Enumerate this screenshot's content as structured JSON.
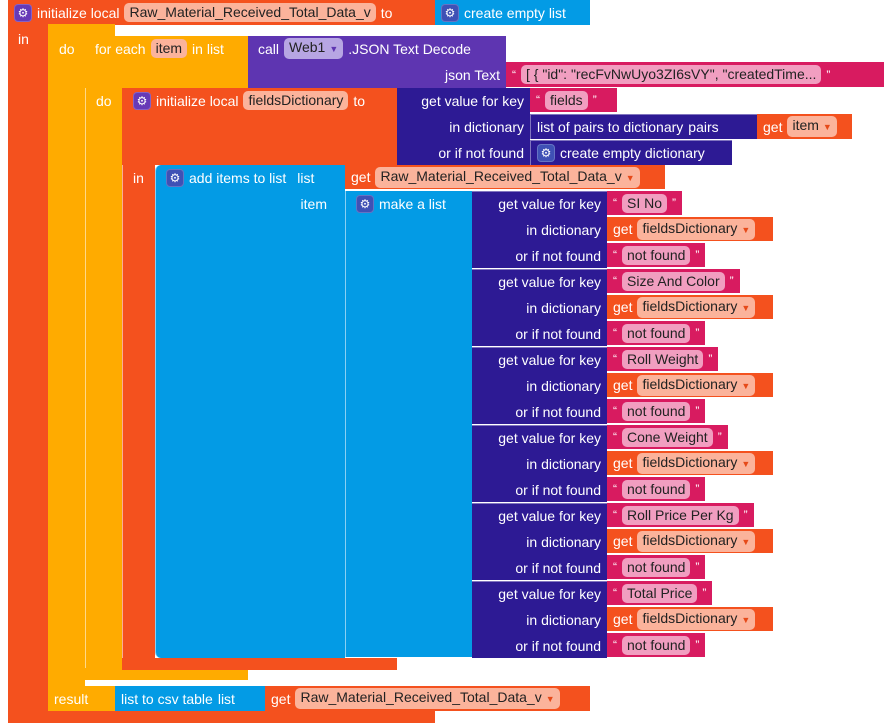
{
  "outer": {
    "label": "initialize local",
    "var": "Raw_Material_Received_Total_Data_v",
    "to": "to",
    "create": "create empty list",
    "in": "in"
  },
  "doblock": {
    "do": "do",
    "result": "result",
    "csv": "list to csv table",
    "list": "list",
    "get": "get",
    "var": "Raw_Material_Received_Total_Data_v"
  },
  "foreach": {
    "label": "for each",
    "var": "item",
    "inlist": "in list",
    "do": "do"
  },
  "call": {
    "call": "call",
    "component": "Web1",
    "method": ".JSON Text Decode",
    "json_label": "json Text",
    "json_value": "[ {  \"id\": \"recFvNwUyo3ZI6sVY\",  \"createdTime..."
  },
  "fd": {
    "label": "initialize local",
    "var": "fieldsDictionary",
    "to": "to",
    "in": "in",
    "gvk": "get value for key",
    "key": "fields",
    "indict": "in dictionary",
    "notfound": "or if not found",
    "lop": "list of pairs to dictionary",
    "pairs": "pairs",
    "get": "get",
    "item": "item",
    "ced": "create empty dictionary"
  },
  "add": {
    "label": "add items to list",
    "list": "list",
    "get": "get",
    "var": "Raw_Material_Received_Total_Data_v",
    "item": "item",
    "make": "make a list"
  },
  "fields": {
    "gvk": "get value for key",
    "indict": "in dictionary",
    "notfound": "or if not found",
    "get": "get",
    "dict": "fieldsDictionary",
    "nf": "not found",
    "keys": [
      "SI No",
      "Size And Color",
      "Roll Weight",
      "Cone Weight",
      "Roll Price Per Kg",
      "Total Price"
    ]
  }
}
